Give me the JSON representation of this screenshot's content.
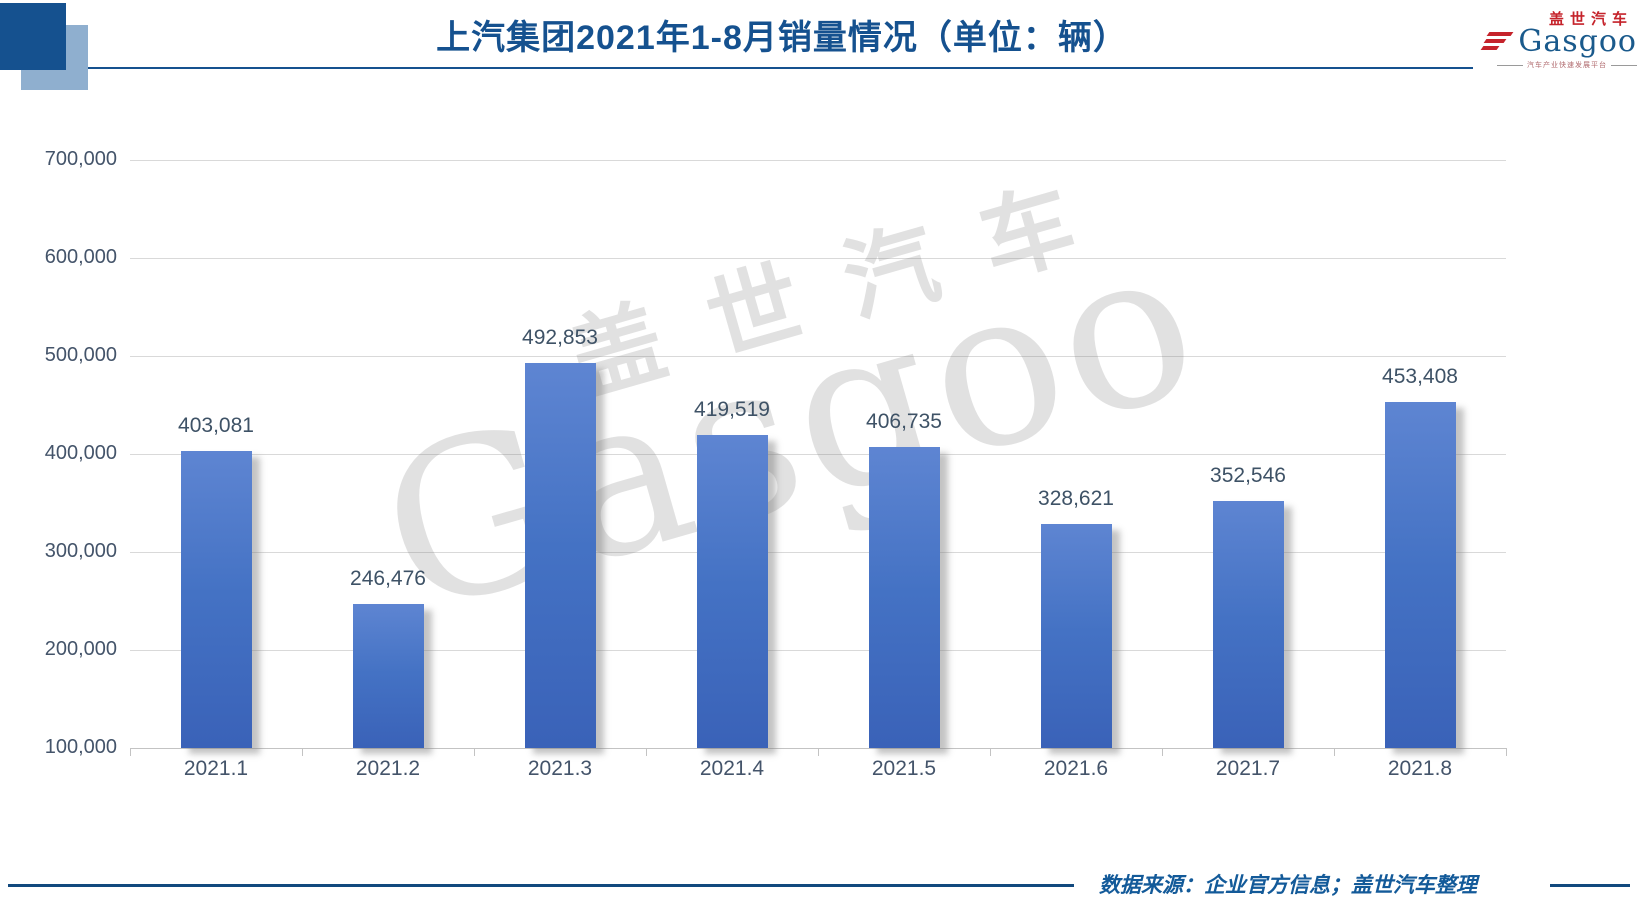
{
  "header": {
    "title": "上汽集团2021年1-8月销量情况（单位：辆）"
  },
  "logo": {
    "cn": "盖世汽车",
    "en": "Gasgoo",
    "tagline": "汽车产业快速发展平台",
    "blue": "#1a5a8c",
    "red": "#c5232b"
  },
  "watermark": {
    "cn": "盖世汽车",
    "en": "Gasgoo"
  },
  "footer": {
    "source_note": "数据来源：企业官方信息；盖世汽车整理"
  },
  "chart_data": {
    "type": "bar",
    "title": "上汽集团2021年1-8月销量情况（单位：辆）",
    "categories": [
      "2021.1",
      "2021.2",
      "2021.3",
      "2021.4",
      "2021.5",
      "2021.6",
      "2021.7",
      "2021.8"
    ],
    "values": [
      403081,
      246476,
      492853,
      419519,
      406735,
      328621,
      352546,
      453408
    ],
    "xlabel": "",
    "ylabel": "",
    "ylim": [
      100000,
      700000
    ],
    "ytick_step": 100000,
    "grid": true,
    "legend": "none",
    "data_labels": true,
    "bar_color": "#4472c4",
    "label_color": "#44546a",
    "grid_color": "#d9d9d9"
  }
}
